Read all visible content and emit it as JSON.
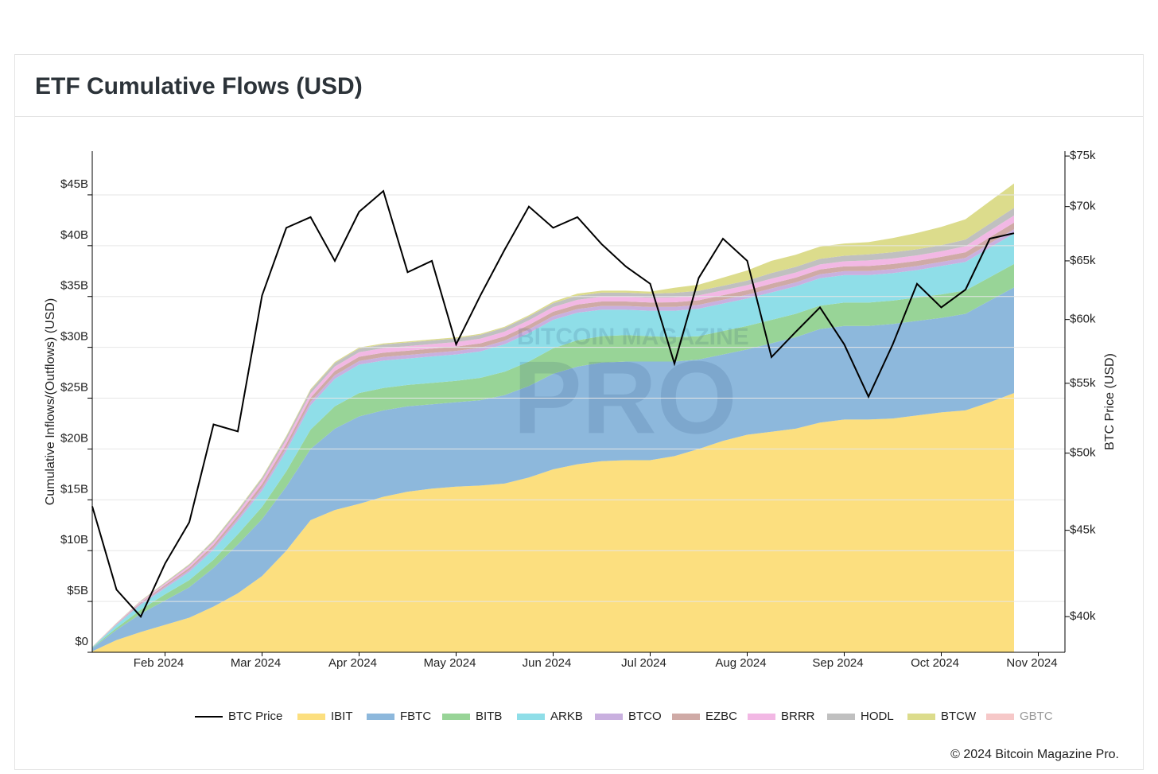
{
  "chart_data": {
    "type": "stacked-area",
    "title": "ETF Cumulative Flows (USD)",
    "y_label": "Cumulative Inflows/(Outflows) (USD)",
    "y2_label": "BTC Price (USD)",
    "footer": "© 2024 Bitcoin Magazine Pro.",
    "watermark": [
      "BITCOIN MAGAZINE",
      "PRO"
    ],
    "categories": [
      null,
      null,
      null,
      "Feb 2024",
      null,
      null,
      null,
      "Mar 2024",
      null,
      null,
      null,
      "Apr 2024",
      null,
      null,
      null,
      "May 2024",
      null,
      null,
      null,
      "Jun 2024",
      null,
      null,
      null,
      "Jul 2024",
      null,
      null,
      null,
      "Aug 2024",
      null,
      null,
      null,
      "Sep 2024",
      null,
      null,
      null,
      "Oct 2024",
      null,
      null,
      null,
      "Nov 2024"
    ],
    "ylim": [
      0,
      49.3
    ],
    "yticks": [
      {
        "value": 0,
        "label": "$0"
      },
      {
        "value": 5,
        "label": "$5B"
      },
      {
        "value": 10,
        "label": "$10B"
      },
      {
        "value": 15,
        "label": "$15B"
      },
      {
        "value": 20,
        "label": "$20B"
      },
      {
        "value": 25,
        "label": "$25B"
      },
      {
        "value": 30,
        "label": "$30B"
      },
      {
        "value": 35,
        "label": "$35B"
      },
      {
        "value": 40,
        "label": "$40B"
      },
      {
        "value": 45,
        "label": "$45B"
      }
    ],
    "y2lim": [
      38100,
      75500
    ],
    "y2_log": true,
    "y2ticks": [
      {
        "value": 40000,
        "label": "$40k"
      },
      {
        "value": 45000,
        "label": "$45k"
      },
      {
        "value": 50000,
        "label": "$50k"
      },
      {
        "value": 55000,
        "label": "$55k"
      },
      {
        "value": 60000,
        "label": "$60k"
      },
      {
        "value": 65000,
        "label": "$65k"
      },
      {
        "value": 70000,
        "label": "$70k"
      },
      {
        "value": 75000,
        "label": "$75k"
      }
    ],
    "grid": true,
    "legend": "bottom",
    "series": [
      {
        "name": "BTC Price",
        "color": "#000000",
        "axis": "y2",
        "kind": "line",
        "values": [
          46500,
          41500,
          40000,
          43000,
          45500,
          52000,
          51500,
          62000,
          68000,
          69000,
          65000,
          69500,
          71500,
          64000,
          65000,
          58000,
          62000,
          66000,
          70000,
          68000,
          69000,
          66500,
          64500,
          63000,
          56500,
          63500,
          67000,
          65000,
          57000,
          59000,
          61000,
          58000,
          54000,
          58000,
          63000,
          61000,
          62500,
          67000,
          67500,
          null
        ]
      },
      {
        "name": "IBIT",
        "color": "#fcdf7f",
        "values": [
          0.1,
          1.2,
          2.0,
          2.7,
          3.4,
          4.5,
          5.8,
          7.5,
          10.0,
          13.0,
          14.0,
          14.6,
          15.3,
          15.8,
          16.1,
          16.3,
          16.4,
          16.6,
          17.2,
          18.0,
          18.5,
          18.8,
          18.9,
          18.9,
          19.3,
          20.0,
          20.8,
          21.4,
          21.7,
          22.0,
          22.6,
          22.9,
          22.9,
          23.0,
          23.3,
          23.6,
          23.8,
          24.6,
          25.5,
          null
        ]
      },
      {
        "name": "FBTC",
        "color": "#8db8dc",
        "values": [
          0.3,
          1.0,
          1.8,
          2.4,
          3.0,
          3.8,
          4.8,
          5.6,
          6.3,
          7.0,
          8.0,
          8.6,
          8.5,
          8.4,
          8.3,
          8.3,
          8.4,
          8.7,
          9.0,
          9.4,
          9.6,
          9.7,
          9.7,
          9.7,
          9.3,
          8.8,
          8.5,
          8.4,
          8.7,
          9.0,
          9.2,
          9.2,
          9.2,
          9.3,
          9.3,
          9.3,
          9.5,
          10.0,
          10.4,
          null
        ]
      },
      {
        "name": "BITB",
        "color": "#98d497",
        "values": [
          0.05,
          0.2,
          0.4,
          0.6,
          0.7,
          0.8,
          1.0,
          1.2,
          1.5,
          1.9,
          2.2,
          2.3,
          2.2,
          2.1,
          2.1,
          2.1,
          2.2,
          2.3,
          2.4,
          2.5,
          2.6,
          2.6,
          2.6,
          2.5,
          2.4,
          2.3,
          2.3,
          2.3,
          2.3,
          2.3,
          2.3,
          2.3,
          2.3,
          2.3,
          2.3,
          2.3,
          2.3,
          2.3,
          2.3,
          null
        ]
      },
      {
        "name": "ARKB",
        "color": "#8fdee8",
        "values": [
          0.05,
          0.3,
          0.5,
          0.6,
          0.8,
          1.0,
          1.3,
          1.6,
          2.0,
          2.4,
          2.7,
          2.8,
          2.7,
          2.6,
          2.6,
          2.6,
          2.6,
          2.7,
          2.8,
          2.8,
          2.7,
          2.6,
          2.5,
          2.5,
          2.6,
          2.7,
          2.7,
          2.7,
          2.7,
          2.7,
          2.7,
          2.7,
          2.7,
          2.7,
          2.7,
          2.8,
          2.8,
          2.9,
          3.0,
          null
        ]
      },
      {
        "name": "BTCO",
        "color": "#c9b0df",
        "values": [
          0.01,
          0.05,
          0.1,
          0.15,
          0.2,
          0.22,
          0.25,
          0.3,
          0.32,
          0.34,
          0.35,
          0.35,
          0.35,
          0.35,
          0.35,
          0.35,
          0.36,
          0.36,
          0.37,
          0.37,
          0.37,
          0.37,
          0.37,
          0.37,
          0.38,
          0.38,
          0.38,
          0.38,
          0.39,
          0.39,
          0.39,
          0.39,
          0.4,
          0.4,
          0.4,
          0.4,
          0.4,
          0.42,
          0.42,
          null
        ]
      },
      {
        "name": "EZBC",
        "color": "#cfaaa6",
        "values": [
          0.01,
          0.05,
          0.1,
          0.15,
          0.2,
          0.25,
          0.3,
          0.35,
          0.38,
          0.4,
          0.42,
          0.42,
          0.42,
          0.42,
          0.42,
          0.42,
          0.43,
          0.43,
          0.43,
          0.43,
          0.44,
          0.44,
          0.44,
          0.44,
          0.45,
          0.45,
          0.45,
          0.45,
          0.47,
          0.47,
          0.47,
          0.47,
          0.5,
          0.5,
          0.5,
          0.5,
          0.55,
          0.6,
          0.65,
          null
        ]
      },
      {
        "name": "BRRR",
        "color": "#f2b8e4",
        "values": [
          0.01,
          0.05,
          0.1,
          0.15,
          0.2,
          0.25,
          0.3,
          0.35,
          0.4,
          0.42,
          0.44,
          0.45,
          0.45,
          0.45,
          0.45,
          0.45,
          0.46,
          0.46,
          0.46,
          0.46,
          0.47,
          0.47,
          0.47,
          0.47,
          0.48,
          0.48,
          0.48,
          0.48,
          0.5,
          0.5,
          0.5,
          0.5,
          0.55,
          0.55,
          0.55,
          0.55,
          0.6,
          0.65,
          0.7,
          null
        ]
      },
      {
        "name": "HODL",
        "color": "#c0c0c0",
        "values": [
          0.01,
          0.03,
          0.06,
          0.1,
          0.14,
          0.18,
          0.22,
          0.26,
          0.3,
          0.33,
          0.35,
          0.36,
          0.36,
          0.36,
          0.36,
          0.36,
          0.38,
          0.38,
          0.38,
          0.38,
          0.4,
          0.4,
          0.4,
          0.4,
          0.45,
          0.45,
          0.45,
          0.45,
          0.55,
          0.55,
          0.55,
          0.55,
          0.6,
          0.6,
          0.6,
          0.6,
          0.65,
          0.7,
          0.75,
          null
        ]
      },
      {
        "name": "BTCW",
        "color": "#dcdc8c",
        "values": [
          0.01,
          0.02,
          0.03,
          0.04,
          0.05,
          0.06,
          0.07,
          0.08,
          0.09,
          0.1,
          0.1,
          0.1,
          0.1,
          0.1,
          0.1,
          0.1,
          0.1,
          0.1,
          0.12,
          0.15,
          0.2,
          0.2,
          0.2,
          0.2,
          0.5,
          0.6,
          0.8,
          1.0,
          1.2,
          1.2,
          1.2,
          1.2,
          1.2,
          1.4,
          1.6,
          1.8,
          2.0,
          2.2,
          2.4,
          null
        ]
      },
      {
        "name": "GBTC",
        "color": "#f6c8c8",
        "hidden": true
      }
    ]
  }
}
